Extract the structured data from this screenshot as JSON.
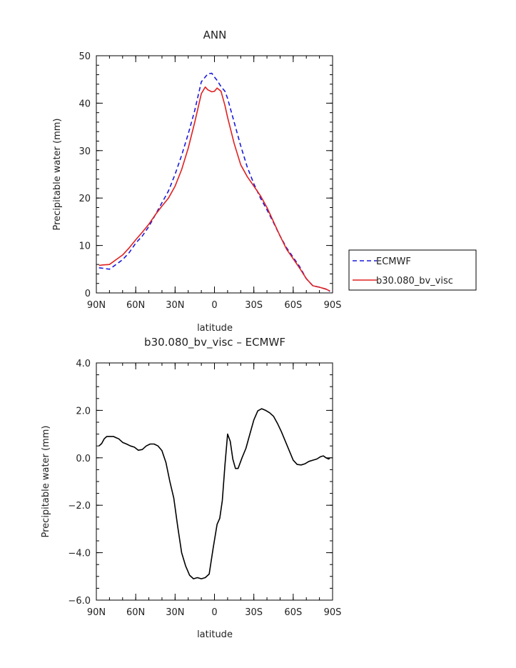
{
  "chart_data": [
    {
      "type": "line",
      "title": "ANN",
      "xlabel": "latitude",
      "ylabel": "Precipitable water (mm)",
      "xlim": [
        90,
        -90
      ],
      "ylim": [
        0,
        50
      ],
      "x_ticks": [
        "90N",
        "60N",
        "30N",
        "0",
        "30S",
        "60S",
        "90S"
      ],
      "y_ticks": [
        "0",
        "10",
        "20",
        "30",
        "40",
        "50"
      ],
      "legend_position": "right",
      "series": [
        {
          "name": "ECMWF",
          "color": "#1a1adc",
          "dash": "dashed",
          "x": [
            88,
            85,
            80,
            75,
            70,
            65,
            60,
            55,
            50,
            45,
            40,
            35,
            30,
            25,
            20,
            15,
            10,
            5,
            2,
            0,
            -2,
            -5,
            -8,
            -10,
            -15,
            -20,
            -25,
            -30,
            -35,
            -40,
            -45,
            -50,
            -55,
            -60,
            -65,
            -70,
            -75,
            -80,
            -85,
            -88
          ],
          "y": [
            5.3,
            5.2,
            5.0,
            6.0,
            7.0,
            8.5,
            10.5,
            12.0,
            14.0,
            16.5,
            19.0,
            21.5,
            25.0,
            29.0,
            33.5,
            38.5,
            44.5,
            46.2,
            46.3,
            45.5,
            44.8,
            43.5,
            42.5,
            41.0,
            36.0,
            31.0,
            26.5,
            23.0,
            20.0,
            17.5,
            14.8,
            12.0,
            9.5,
            7.5,
            5.5,
            3.0,
            1.5,
            1.2,
            0.8,
            0.3
          ]
        },
        {
          "name": "b30.080_bv_visc",
          "color": "#e02020",
          "dash": "solid",
          "x": [
            88,
            85,
            80,
            75,
            70,
            65,
            60,
            55,
            50,
            45,
            40,
            35,
            30,
            25,
            20,
            15,
            10,
            7,
            5,
            2,
            0,
            -2,
            -5,
            -8,
            -10,
            -15,
            -20,
            -25,
            -30,
            -35,
            -40,
            -45,
            -50,
            -55,
            -60,
            -65,
            -70,
            -75,
            -80,
            -85,
            -88
          ],
          "y": [
            5.8,
            5.9,
            6.0,
            7.0,
            8.0,
            9.5,
            11.2,
            12.8,
            14.5,
            16.5,
            18.3,
            20.0,
            22.5,
            26.0,
            30.5,
            36.0,
            42.0,
            43.4,
            42.8,
            42.4,
            42.5,
            43.2,
            42.5,
            39.5,
            37.0,
            31.5,
            27.0,
            24.5,
            22.5,
            20.5,
            18.0,
            15.0,
            12.0,
            9.2,
            7.2,
            5.2,
            3.0,
            1.5,
            1.2,
            0.8,
            0.4
          ]
        }
      ]
    },
    {
      "type": "line",
      "title": "b30.080_bv_visc – ECMWF",
      "xlabel": "latitude",
      "ylabel": "Precipitable water (mm)",
      "xlim": [
        90,
        -90
      ],
      "ylim": [
        -6,
        4
      ],
      "x_ticks": [
        "90N",
        "60N",
        "30N",
        "0",
        "30S",
        "60S",
        "90S"
      ],
      "y_ticks": [
        "4.0",
        "2.0",
        "0.0",
        "−2.0",
        "−4.0",
        "−6.0"
      ],
      "series": [
        {
          "color": "#000000",
          "dash": "solid",
          "x": [
            88,
            86,
            84,
            82,
            80,
            77,
            75,
            73,
            70,
            67,
            64,
            61,
            58,
            55,
            52,
            49,
            46,
            43,
            40,
            37,
            34,
            31,
            28,
            25,
            22,
            19,
            16,
            13,
            10,
            7,
            4,
            1,
            -2,
            -4,
            -6,
            -8,
            -10,
            -12,
            -14,
            -16,
            -18,
            -21,
            -24,
            -27,
            -30,
            -33,
            -36,
            -39,
            -42,
            -45,
            -48,
            -51,
            -54,
            -57,
            -60,
            -63,
            -66,
            -69,
            -72,
            -75,
            -78,
            -81,
            -83,
            -85,
            -87,
            -88
          ],
          "y": [
            0.5,
            0.6,
            0.8,
            0.9,
            0.9,
            0.9,
            0.85,
            0.8,
            0.65,
            0.58,
            0.5,
            0.45,
            0.32,
            0.35,
            0.5,
            0.58,
            0.58,
            0.5,
            0.3,
            -0.2,
            -1.0,
            -1.7,
            -2.9,
            -4.0,
            -4.55,
            -4.95,
            -5.1,
            -5.05,
            -5.1,
            -5.05,
            -4.9,
            -3.8,
            -2.8,
            -2.55,
            -1.8,
            -0.3,
            1.0,
            0.7,
            -0.05,
            -0.45,
            -0.45,
            0.0,
            0.4,
            1.0,
            1.6,
            1.98,
            2.07,
            2.0,
            1.9,
            1.75,
            1.45,
            1.1,
            0.7,
            0.3,
            -0.1,
            -0.28,
            -0.3,
            -0.25,
            -0.15,
            -0.1,
            -0.05,
            0.05,
            0.08,
            0.0,
            -0.05,
            0.0
          ]
        }
      ]
    }
  ]
}
